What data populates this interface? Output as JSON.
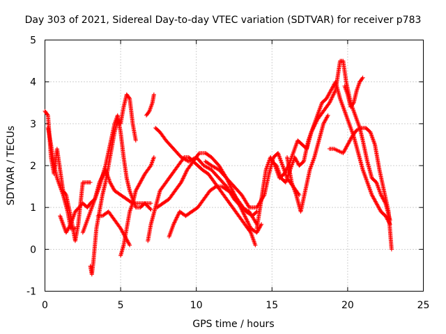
{
  "chart_data": {
    "type": "scatter",
    "title": "Day 303 of 2021, Sidereal Day-to-day VTEC variation (SDTVAR) for receiver p783",
    "xlabel": "GPS time / hours",
    "ylabel": "SDTVAR / TECUs",
    "xlim": [
      0,
      25
    ],
    "ylim": [
      -1,
      5
    ],
    "xticks": [
      "0",
      "5",
      "10",
      "15",
      "20",
      "25"
    ],
    "yticks": [
      "-1",
      "0",
      "1",
      "2",
      "3",
      "4",
      "5"
    ],
    "grid": true,
    "marker": "plus",
    "color": "#ff0000",
    "series": [
      {
        "name": "track-1",
        "points": [
          [
            0.0,
            3.3
          ],
          [
            0.2,
            3.2
          ],
          [
            0.4,
            2.2
          ],
          [
            0.6,
            1.8
          ],
          [
            0.8,
            2.4
          ],
          [
            1.0,
            1.9
          ],
          [
            1.2,
            1.4
          ],
          [
            1.4,
            1.3
          ],
          [
            1.7,
            0.8
          ],
          [
            2.0,
            0.2
          ],
          [
            2.2,
            0.6
          ],
          [
            2.5,
            1.6
          ],
          [
            2.8,
            1.6
          ],
          [
            3.0,
            1.6
          ]
        ]
      },
      {
        "name": "track-2",
        "points": [
          [
            0.2,
            2.9
          ],
          [
            0.4,
            2.5
          ],
          [
            0.6,
            2.0
          ],
          [
            0.8,
            1.7
          ],
          [
            1.0,
            1.5
          ],
          [
            1.2,
            1.3
          ],
          [
            1.5,
            0.9
          ],
          [
            1.7,
            0.5
          ],
          [
            2.0,
            0.5
          ]
        ]
      },
      {
        "name": "track-3",
        "points": [
          [
            1.0,
            0.8
          ],
          [
            1.4,
            0.4
          ],
          [
            1.7,
            0.6
          ],
          [
            2.0,
            0.9
          ],
          [
            2.5,
            1.1
          ],
          [
            2.8,
            1.0
          ],
          [
            3.0,
            1.1
          ],
          [
            3.3,
            1.2
          ],
          [
            3.6,
            1.6
          ],
          [
            4.0,
            1.9
          ],
          [
            4.3,
            1.6
          ],
          [
            4.6,
            1.4
          ],
          [
            5.0,
            1.3
          ],
          [
            5.4,
            1.2
          ],
          [
            5.8,
            1.1
          ],
          [
            6.2,
            1.1
          ],
          [
            6.6,
            1.1
          ],
          [
            7.0,
            0.95
          ]
        ]
      },
      {
        "name": "track-4",
        "points": [
          [
            3.0,
            -0.4
          ],
          [
            3.1,
            -0.6
          ],
          [
            3.2,
            -0.3
          ],
          [
            3.3,
            0.1
          ],
          [
            3.4,
            0.5
          ],
          [
            3.6,
            0.9
          ],
          [
            3.8,
            1.3
          ],
          [
            4.0,
            1.6
          ],
          [
            4.2,
            2.0
          ],
          [
            4.4,
            2.4
          ],
          [
            4.6,
            2.8
          ],
          [
            4.8,
            3.1
          ],
          [
            5.0,
            3.0
          ],
          [
            5.2,
            3.4
          ],
          [
            5.4,
            3.7
          ],
          [
            5.6,
            3.6
          ],
          [
            5.8,
            3.0
          ],
          [
            6.0,
            2.6
          ]
        ]
      },
      {
        "name": "track-5",
        "points": [
          [
            2.5,
            0.4
          ],
          [
            2.8,
            0.7
          ],
          [
            3.0,
            0.9
          ],
          [
            3.3,
            1.2
          ],
          [
            3.6,
            1.5
          ],
          [
            4.0,
            2.0
          ],
          [
            4.3,
            2.5
          ],
          [
            4.6,
            3.0
          ],
          [
            4.8,
            3.2
          ],
          [
            5.0,
            2.8
          ],
          [
            5.2,
            2.2
          ],
          [
            5.4,
            1.7
          ],
          [
            5.6,
            1.4
          ],
          [
            5.8,
            1.2
          ],
          [
            6.0,
            1.0
          ],
          [
            6.3,
            1.0
          ],
          [
            6.6,
            1.1
          ],
          [
            7.0,
            1.1
          ]
        ]
      },
      {
        "name": "track-6",
        "points": [
          [
            3.5,
            0.8
          ],
          [
            3.8,
            0.8
          ],
          [
            4.2,
            0.9
          ],
          [
            4.6,
            0.7
          ],
          [
            5.0,
            0.5
          ],
          [
            5.3,
            0.3
          ],
          [
            5.6,
            0.1
          ]
        ]
      },
      {
        "name": "track-7",
        "points": [
          [
            5.0,
            -0.15
          ],
          [
            5.2,
            0.1
          ],
          [
            5.4,
            0.5
          ],
          [
            5.6,
            0.9
          ],
          [
            5.8,
            1.1
          ],
          [
            6.0,
            1.4
          ],
          [
            6.3,
            1.6
          ],
          [
            6.6,
            1.8
          ],
          [
            7.0,
            2.0
          ],
          [
            7.2,
            2.2
          ]
        ]
      },
      {
        "name": "track-8",
        "points": [
          [
            6.7,
            3.2
          ],
          [
            6.9,
            3.3
          ],
          [
            7.1,
            3.5
          ],
          [
            7.2,
            3.7
          ]
        ]
      },
      {
        "name": "track-9",
        "points": [
          [
            6.8,
            0.2
          ],
          [
            7.0,
            0.6
          ],
          [
            7.3,
            1.0
          ],
          [
            7.6,
            1.4
          ],
          [
            8.0,
            1.6
          ],
          [
            8.4,
            1.8
          ],
          [
            8.8,
            2.0
          ],
          [
            9.2,
            2.2
          ],
          [
            9.5,
            2.2
          ],
          [
            9.8,
            2.1
          ],
          [
            10.1,
            2.0
          ],
          [
            10.4,
            1.9
          ],
          [
            10.8,
            1.8
          ],
          [
            11.2,
            1.6
          ],
          [
            11.6,
            1.4
          ],
          [
            12.0,
            1.2
          ],
          [
            12.4,
            1.0
          ],
          [
            12.8,
            0.8
          ],
          [
            13.2,
            0.6
          ],
          [
            13.6,
            0.4
          ],
          [
            13.9,
            0.1
          ]
        ]
      },
      {
        "name": "track-10",
        "points": [
          [
            7.3,
            2.9
          ],
          [
            7.6,
            2.8
          ],
          [
            8.0,
            2.6
          ],
          [
            8.5,
            2.4
          ],
          [
            9.0,
            2.2
          ],
          [
            9.5,
            2.1
          ],
          [
            10.0,
            2.2
          ],
          [
            10.5,
            2.0
          ],
          [
            11.0,
            1.9
          ],
          [
            11.5,
            1.7
          ],
          [
            12.0,
            1.5
          ],
          [
            12.5,
            1.2
          ],
          [
            13.0,
            1.0
          ],
          [
            13.5,
            0.9
          ],
          [
            14.0,
            0.6
          ]
        ]
      },
      {
        "name": "track-11",
        "points": [
          [
            7.4,
            1.0
          ],
          [
            7.8,
            1.1
          ],
          [
            8.2,
            1.2
          ],
          [
            8.6,
            1.4
          ],
          [
            9.0,
            1.6
          ],
          [
            9.4,
            1.9
          ],
          [
            9.8,
            2.1
          ],
          [
            10.2,
            2.3
          ],
          [
            10.6,
            2.3
          ],
          [
            11.0,
            2.2
          ],
          [
            11.5,
            2.0
          ],
          [
            12.0,
            1.7
          ],
          [
            12.4,
            1.4
          ],
          [
            12.8,
            1.1
          ],
          [
            13.2,
            0.8
          ],
          [
            13.6,
            0.5
          ],
          [
            14.0,
            0.4
          ],
          [
            14.3,
            0.6
          ]
        ]
      },
      {
        "name": "track-12",
        "points": [
          [
            8.2,
            0.3
          ],
          [
            8.5,
            0.6
          ],
          [
            8.9,
            0.9
          ],
          [
            9.3,
            0.8
          ],
          [
            9.7,
            0.9
          ],
          [
            10.1,
            1.0
          ],
          [
            10.5,
            1.2
          ],
          [
            10.9,
            1.4
          ],
          [
            11.3,
            1.5
          ],
          [
            11.7,
            1.5
          ],
          [
            12.1,
            1.4
          ],
          [
            12.5,
            1.3
          ],
          [
            12.9,
            1.1
          ],
          [
            13.3,
            0.9
          ],
          [
            13.7,
            0.8
          ],
          [
            14.0,
            0.9
          ]
        ]
      },
      {
        "name": "track-13",
        "points": [
          [
            10.6,
            2.1
          ],
          [
            11.0,
            2.0
          ],
          [
            11.5,
            1.9
          ],
          [
            12.0,
            1.7
          ],
          [
            12.5,
            1.5
          ],
          [
            13.0,
            1.3
          ],
          [
            13.5,
            1.0
          ],
          [
            14.0,
            1.0
          ],
          [
            14.5,
            1.3
          ],
          [
            14.8,
            1.8
          ],
          [
            15.1,
            2.2
          ],
          [
            15.4,
            2.3
          ],
          [
            15.7,
            2.0
          ],
          [
            16.0,
            1.7
          ],
          [
            16.4,
            1.5
          ],
          [
            16.8,
            1.3
          ]
        ]
      },
      {
        "name": "track-14",
        "points": [
          [
            14.0,
            0.5
          ],
          [
            14.3,
            1.2
          ],
          [
            14.6,
            1.9
          ],
          [
            14.9,
            2.2
          ],
          [
            15.2,
            2.0
          ],
          [
            15.5,
            1.7
          ],
          [
            15.8,
            1.8
          ],
          [
            16.1,
            2.0
          ],
          [
            16.4,
            2.3
          ],
          [
            16.7,
            2.6
          ],
          [
            17.0,
            2.5
          ],
          [
            17.3,
            2.4
          ],
          [
            17.6,
            2.8
          ],
          [
            18.0,
            3.1
          ],
          [
            18.4,
            3.3
          ],
          [
            18.8,
            3.5
          ],
          [
            19.2,
            3.8
          ],
          [
            19.5,
            4.5
          ],
          [
            19.7,
            4.5
          ],
          [
            19.9,
            4.0
          ],
          [
            20.2,
            3.5
          ],
          [
            20.5,
            3.2
          ],
          [
            20.8,
            2.9
          ],
          [
            21.0,
            2.6
          ],
          [
            21.3,
            2.1
          ],
          [
            21.6,
            1.7
          ],
          [
            21.9,
            1.6
          ],
          [
            22.2,
            1.3
          ],
          [
            22.5,
            1.1
          ],
          [
            22.8,
            0.7
          ]
        ]
      },
      {
        "name": "track-15",
        "points": [
          [
            15.0,
            2.1
          ],
          [
            15.3,
            2.0
          ],
          [
            15.6,
            1.7
          ],
          [
            15.9,
            1.6
          ],
          [
            16.2,
            1.9
          ],
          [
            16.5,
            2.2
          ],
          [
            16.8,
            2.0
          ],
          [
            17.1,
            2.1
          ],
          [
            17.4,
            2.6
          ],
          [
            17.7,
            2.9
          ],
          [
            18.0,
            3.2
          ],
          [
            18.3,
            3.5
          ],
          [
            18.6,
            3.6
          ],
          [
            18.9,
            3.8
          ],
          [
            19.2,
            4.0
          ],
          [
            19.5,
            3.6
          ],
          [
            19.8,
            3.3
          ],
          [
            20.1,
            3.0
          ],
          [
            20.4,
            2.7
          ],
          [
            20.7,
            2.3
          ],
          [
            21.0,
            1.9
          ],
          [
            21.3,
            1.6
          ],
          [
            21.6,
            1.3
          ],
          [
            21.9,
            1.1
          ],
          [
            22.2,
            0.9
          ],
          [
            22.5,
            0.8
          ],
          [
            22.8,
            0.6
          ]
        ]
      },
      {
        "name": "track-16",
        "points": [
          [
            18.8,
            2.4
          ],
          [
            19.1,
            2.4
          ],
          [
            19.4,
            2.35
          ],
          [
            19.7,
            2.3
          ],
          [
            20.0,
            2.5
          ],
          [
            20.3,
            2.7
          ],
          [
            20.6,
            2.85
          ],
          [
            20.9,
            2.9
          ],
          [
            21.2,
            2.9
          ],
          [
            21.5,
            2.8
          ],
          [
            21.8,
            2.5
          ],
          [
            22.1,
            1.9
          ],
          [
            22.4,
            1.4
          ],
          [
            22.7,
            0.9
          ],
          [
            22.9,
            0.0
          ]
        ]
      },
      {
        "name": "track-17",
        "points": [
          [
            19.8,
            3.9
          ],
          [
            20.0,
            3.7
          ],
          [
            20.2,
            3.4
          ],
          [
            20.4,
            3.5
          ],
          [
            20.6,
            3.8
          ],
          [
            20.8,
            4.0
          ],
          [
            21.0,
            4.1
          ]
        ]
      },
      {
        "name": "track-18",
        "points": [
          [
            16.0,
            2.2
          ],
          [
            16.3,
            1.6
          ],
          [
            16.6,
            1.3
          ],
          [
            16.9,
            0.9
          ],
          [
            17.2,
            1.4
          ],
          [
            17.5,
            1.9
          ],
          [
            17.8,
            2.2
          ],
          [
            18.1,
            2.6
          ],
          [
            18.4,
            3.0
          ],
          [
            18.7,
            3.2
          ]
        ]
      }
    ]
  }
}
